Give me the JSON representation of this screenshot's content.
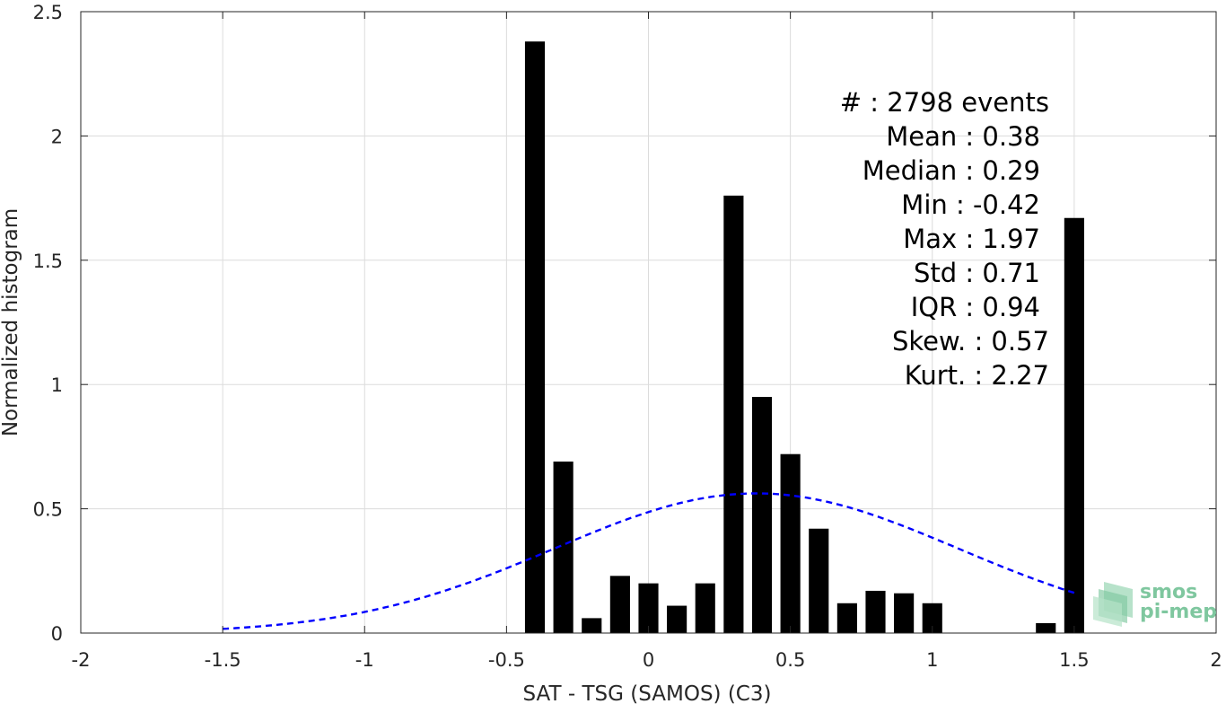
{
  "chart_data": {
    "type": "bar",
    "xlabel": "SAT - TSG (SAMOS) (C3)",
    "ylabel": "Normalized histogram",
    "xlim": [
      -2,
      2
    ],
    "ylim": [
      0,
      2.5
    ],
    "x_ticks": [
      -2,
      -1.5,
      -1,
      -0.5,
      0,
      0.5,
      1,
      1.5,
      2
    ],
    "x_tick_labels": [
      "-2",
      "-1.5",
      "-1",
      "-0.5",
      "0",
      "0.5",
      "1",
      "1.5",
      "2"
    ],
    "y_ticks": [
      0,
      0.5,
      1,
      1.5,
      2,
      2.5
    ],
    "y_tick_labels": [
      "0",
      "0.5",
      "1",
      "1.5",
      "2",
      "2.5"
    ],
    "grid": true,
    "bin_width": 0.1,
    "bins": [
      {
        "x": -0.4,
        "value": 2.38
      },
      {
        "x": -0.3,
        "value": 0.69
      },
      {
        "x": -0.2,
        "value": 0.06
      },
      {
        "x": -0.1,
        "value": 0.23
      },
      {
        "x": 0.0,
        "value": 0.2
      },
      {
        "x": 0.1,
        "value": 0.11
      },
      {
        "x": 0.2,
        "value": 0.2
      },
      {
        "x": 0.3,
        "value": 1.76
      },
      {
        "x": 0.4,
        "value": 0.95
      },
      {
        "x": 0.5,
        "value": 0.72
      },
      {
        "x": 0.6,
        "value": 0.42
      },
      {
        "x": 0.7,
        "value": 0.12
      },
      {
        "x": 0.8,
        "value": 0.17
      },
      {
        "x": 0.9,
        "value": 0.16
      },
      {
        "x": 1.0,
        "value": 0.12
      },
      {
        "x": 1.4,
        "value": 0.04
      },
      {
        "x": 1.5,
        "value": 1.67
      }
    ],
    "bar_color": "#000000",
    "fit_curve": {
      "style": "dashed",
      "color": "#0000ff",
      "mean": 0.38,
      "std": 0.71,
      "x_range": [
        -1.5,
        1.5
      ]
    },
    "stats": [
      {
        "label": "#  : 2798 events"
      },
      {
        "label": "Mean : 0.38"
      },
      {
        "label": "Median : 0.29"
      },
      {
        "label": "Min : -0.42"
      },
      {
        "label": "Max : 1.97"
      },
      {
        "label": "Std : 0.71"
      },
      {
        "label": "IQR : 0.94"
      },
      {
        "label": "Skew. : 0.57"
      },
      {
        "label": "Kurt. : 2.27"
      }
    ]
  },
  "logo": {
    "line1": "smos",
    "line2": "pi-mep",
    "color": "#7fc79f"
  }
}
